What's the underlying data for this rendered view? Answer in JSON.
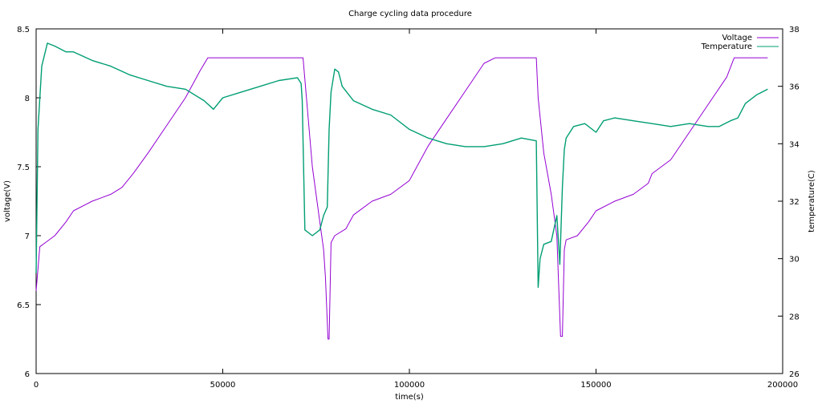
{
  "chart_data": {
    "type": "line",
    "title": "Charge cycling data procedure",
    "xlabel": "time(s)",
    "ylabel": "voltage(V)",
    "y2label": "temperature(C)",
    "xlim": [
      0,
      200000
    ],
    "ylim": [
      6,
      8.5
    ],
    "y2lim": [
      26,
      38
    ],
    "x_ticks": [
      0,
      50000,
      100000,
      150000,
      200000
    ],
    "y_ticks": [
      6,
      6.5,
      7,
      7.5,
      8,
      8.5
    ],
    "y2_ticks": [
      26,
      28,
      30,
      32,
      34,
      36,
      38
    ],
    "grid": false,
    "legend_position": "top-right",
    "colors": {
      "voltage": "#9400d3",
      "temperature": "#009e73"
    },
    "series": [
      {
        "name": "Voltage",
        "axis": "y",
        "x": [
          0,
          1000,
          2500,
          5000,
          8000,
          10000,
          15000,
          20000,
          23000,
          24500,
          26000,
          30000,
          35000,
          40000,
          44000,
          46000,
          50000,
          55000,
          60000,
          65000,
          70000,
          71500,
          74000,
          76000,
          77000,
          77500,
          78200,
          78500,
          79000,
          80000,
          83000,
          85000,
          90000,
          95000,
          100000,
          101000,
          105000,
          110000,
          115000,
          120000,
          123000,
          126000,
          130000,
          134000,
          134500,
          136000,
          138000,
          139500,
          140500,
          141000,
          141500,
          142000,
          145000,
          148000,
          150000,
          155000,
          160000,
          164000,
          165000,
          170000,
          175000,
          180000,
          185000,
          187000,
          190000,
          196000
        ],
        "values": [
          6.6,
          6.92,
          6.95,
          7.0,
          7.1,
          7.18,
          7.25,
          7.3,
          7.35,
          7.4,
          7.45,
          7.6,
          7.8,
          8.0,
          8.2,
          8.29,
          8.29,
          8.29,
          8.29,
          8.29,
          8.29,
          8.29,
          7.5,
          7.1,
          6.9,
          6.7,
          6.25,
          6.25,
          6.95,
          7.0,
          7.05,
          7.15,
          7.25,
          7.3,
          7.4,
          7.45,
          7.65,
          7.85,
          8.05,
          8.25,
          8.29,
          8.29,
          8.29,
          8.29,
          8.0,
          7.6,
          7.3,
          7.0,
          6.27,
          6.27,
          6.9,
          6.97,
          7.0,
          7.1,
          7.18,
          7.25,
          7.3,
          7.38,
          7.45,
          7.55,
          7.75,
          7.95,
          8.15,
          8.29,
          8.29,
          8.29
        ]
      },
      {
        "name": "Temperature",
        "axis": "y2",
        "x": [
          0,
          500,
          1500,
          3000,
          5000,
          8000,
          10000,
          15000,
          20000,
          25000,
          30000,
          35000,
          40000,
          45000,
          47500,
          50000,
          55000,
          60000,
          65000,
          70000,
          71000,
          71300,
          72000,
          74000,
          76000,
          77000,
          78000,
          78500,
          79000,
          80000,
          81000,
          82000,
          85000,
          90000,
          95000,
          100000,
          105000,
          110000,
          115000,
          120000,
          125000,
          130000,
          134000,
          134500,
          135000,
          136000,
          138000,
          139500,
          140300,
          141000,
          141500,
          142000,
          144000,
          147000,
          150000,
          152000,
          155000,
          160000,
          165000,
          170000,
          175000,
          180000,
          183000,
          186000,
          188000,
          190000,
          193000,
          196000
        ],
        "values": [
          29.5,
          34.5,
          36.7,
          37.5,
          37.4,
          37.2,
          37.2,
          36.9,
          36.7,
          36.4,
          36.2,
          36.0,
          35.9,
          35.5,
          35.2,
          35.6,
          35.8,
          36.0,
          36.2,
          36.3,
          36.1,
          35.5,
          31.0,
          30.8,
          31.0,
          31.5,
          31.8,
          34.5,
          35.8,
          36.6,
          36.5,
          36.0,
          35.5,
          35.2,
          35.0,
          34.5,
          34.2,
          34.0,
          33.9,
          33.9,
          34.0,
          34.2,
          34.1,
          29.0,
          30.0,
          30.5,
          30.6,
          31.5,
          29.8,
          32.5,
          33.8,
          34.2,
          34.6,
          34.7,
          34.4,
          34.8,
          34.9,
          34.8,
          34.7,
          34.6,
          34.7,
          34.6,
          34.6,
          34.8,
          34.9,
          35.4,
          35.7,
          35.9
        ]
      }
    ]
  }
}
